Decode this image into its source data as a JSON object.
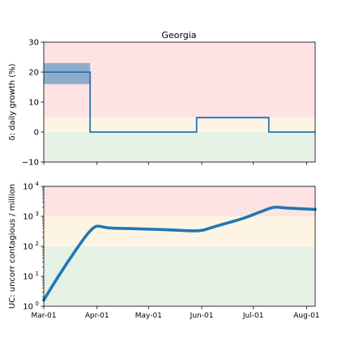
{
  "figure_title": "Georgia",
  "colors": {
    "line": "#1f77b4",
    "band": "#1f77b4",
    "zone_red": "#fde3e3",
    "zone_yellow": "#fdf4e3",
    "zone_green": "#e5f1e5",
    "axis": "#000000"
  },
  "chart_data": [
    {
      "type": "line",
      "step": true,
      "title": "Georgia",
      "ylabel": "δ: daily growth (%)",
      "xlim": [
        "2020-03-01",
        "2020-08-06"
      ],
      "ylim": [
        -10,
        30
      ],
      "yticks": [
        -10,
        0,
        10,
        20,
        30
      ],
      "ytick_labels": [
        "−10",
        "0",
        "10",
        "20",
        "30"
      ],
      "zones": [
        {
          "from": -10,
          "to": 0,
          "color": "green"
        },
        {
          "from": 0,
          "to": 5,
          "color": "yellow"
        },
        {
          "from": 5,
          "to": 30,
          "color": "red"
        }
      ],
      "series": [
        {
          "x": [
            "2020-03-01",
            "2020-03-28",
            "2020-03-28",
            "2020-05-29",
            "2020-05-29",
            "2020-07-10",
            "2020-07-10",
            "2020-08-06"
          ],
          "y": [
            20,
            20,
            0,
            0,
            4.8,
            4.8,
            0,
            0
          ]
        }
      ],
      "uncertainty_band": {
        "x": [
          "2020-03-01",
          "2020-03-28"
        ],
        "y_low": 16,
        "y_high": 23
      }
    },
    {
      "type": "line",
      "log_scale": true,
      "ylabel": "UC: uncorr contagious / million",
      "xlim": [
        "2020-03-01",
        "2020-08-06"
      ],
      "ylim": [
        1,
        10000
      ],
      "yticks": [
        1,
        10,
        100,
        1000,
        10000
      ],
      "ytick_exponents": [
        "0",
        "1",
        "2",
        "3",
        "4"
      ],
      "ytick_base": "10",
      "xticks": [
        "2020-03-01",
        "2020-04-01",
        "2020-05-01",
        "2020-06-01",
        "2020-07-01",
        "2020-08-01"
      ],
      "xtick_labels": [
        "Mar-01",
        "Apr-01",
        "May-01",
        "Jun-01",
        "Jul-01",
        "Aug-01"
      ],
      "zones": [
        {
          "from": 1,
          "to": 100,
          "color": "green"
        },
        {
          "from": 100,
          "to": 1000,
          "color": "yellow"
        },
        {
          "from": 1000,
          "to": 10000,
          "color": "red"
        }
      ],
      "series": [
        {
          "x": [
            "2020-03-01",
            "2020-03-10",
            "2020-03-20",
            "2020-03-27",
            "2020-03-31",
            "2020-04-03",
            "2020-04-08",
            "2020-04-20",
            "2020-05-10",
            "2020-05-25",
            "2020-06-01",
            "2020-06-10",
            "2020-06-25",
            "2020-07-05",
            "2020-07-13",
            "2020-07-20",
            "2020-08-06"
          ],
          "y": [
            1.6,
            11,
            80,
            280,
            450,
            460,
            410,
            390,
            360,
            330,
            340,
            480,
            850,
            1400,
            2000,
            1900,
            1700
          ]
        }
      ]
    }
  ]
}
